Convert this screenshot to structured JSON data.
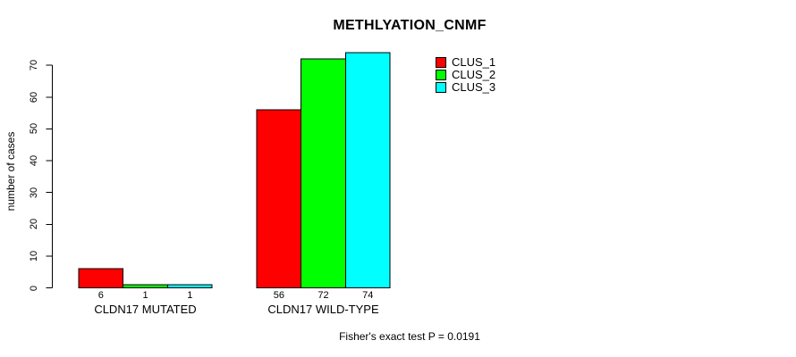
{
  "chart_data": {
    "type": "bar",
    "title": "METHLYATION_CNMF",
    "ylabel": "number of cases",
    "xlabel": "",
    "ylim": [
      0,
      70
    ],
    "yticks": [
      0,
      10,
      20,
      30,
      40,
      50,
      60,
      70
    ],
    "grid": false,
    "background": "#ffffff",
    "legend_position": "top-right",
    "series": [
      {
        "name": "CLUS_1",
        "color": "#ff0000"
      },
      {
        "name": "CLUS_2",
        "color": "#00ff00"
      },
      {
        "name": "CLUS_3",
        "color": "#00ffff"
      }
    ],
    "groups": [
      {
        "label": "CLDN17 MUTATED",
        "values": [
          6,
          1,
          1
        ]
      },
      {
        "label": "CLDN17 WILD-TYPE",
        "values": [
          56,
          72,
          74
        ]
      }
    ],
    "bar_value_labels": true,
    "annotation": "Fisher's exact test P = 0.0191"
  }
}
